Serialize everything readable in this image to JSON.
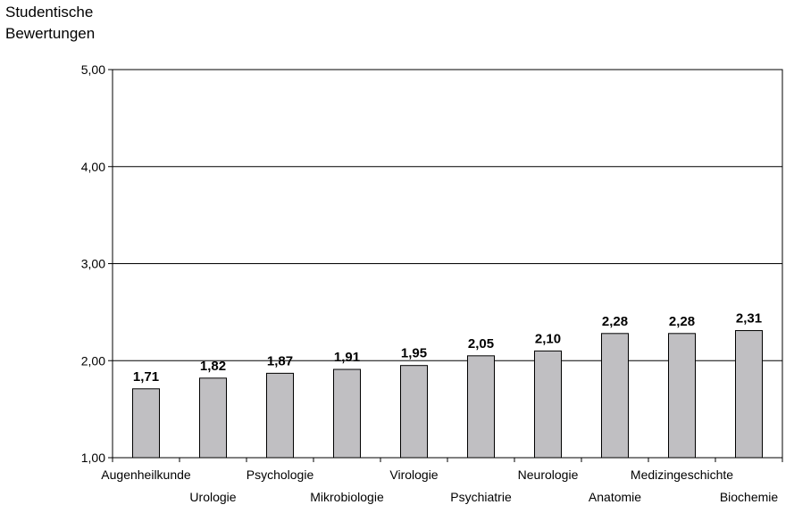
{
  "chart_data": {
    "type": "bar",
    "ylabel_lines": [
      "Studentische",
      "Bewertungen"
    ],
    "ylim": [
      1,
      5
    ],
    "yticks": [
      "1,00",
      "2,00",
      "3,00",
      "4,00",
      "5,00"
    ],
    "grid": true,
    "categories": [
      "Augenheilkunde",
      "Urologie",
      "Psychologie",
      "Mikrobiologie",
      "Virologie",
      "Psychiatrie",
      "Neurologie",
      "Anatomie",
      "Medizingeschichte",
      "Biochemie"
    ],
    "values": [
      1.71,
      1.82,
      1.87,
      1.91,
      1.95,
      2.05,
      2.1,
      2.28,
      2.28,
      2.31
    ],
    "value_labels": [
      "1,71",
      "1,82",
      "1,87",
      "1,91",
      "1,95",
      "2,05",
      "2,10",
      "2,28",
      "2,28",
      "2,31"
    ],
    "bar_color": "#c0bfc2"
  }
}
